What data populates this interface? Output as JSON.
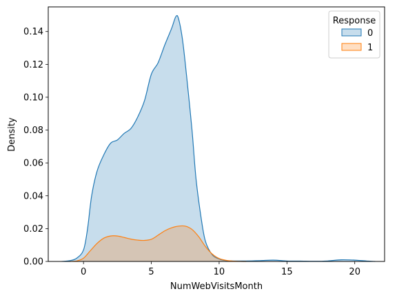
{
  "chart_data": {
    "type": "area",
    "xlabel": "NumWebVisitsMonth",
    "ylabel": "Density",
    "xlim": [
      -2.6,
      22.2
    ],
    "ylim": [
      0,
      0.155
    ],
    "xticks": [
      0,
      5,
      10,
      15,
      20
    ],
    "yticks": [
      0.0,
      0.02,
      0.04,
      0.06,
      0.08,
      0.1,
      0.12,
      0.14
    ],
    "xtick_labels": [
      "0",
      "5",
      "10",
      "15",
      "20"
    ],
    "ytick_labels": [
      "0.00",
      "0.02",
      "0.04",
      "0.06",
      "0.08",
      "0.10",
      "0.12",
      "0.14"
    ],
    "grid": false,
    "legend": {
      "title": "Response",
      "placement": "top-right"
    },
    "series": [
      {
        "name": "0",
        "color": "#1f77b4",
        "fill_color": "#c6dbee",
        "x": [
          -1.6,
          -1.0,
          -0.5,
          0.0,
          0.3,
          0.6,
          1.0,
          1.5,
          2.0,
          2.5,
          3.0,
          3.5,
          4.0,
          4.5,
          5.0,
          5.5,
          6.0,
          6.5,
          6.8,
          7.0,
          7.3,
          7.6,
          8.0,
          8.3,
          8.7,
          9.0,
          9.5,
          10.0,
          10.5,
          11.0,
          12.0,
          13.0,
          14.0,
          15.0,
          16.0,
          17.0,
          18.0,
          19.0,
          20.0,
          21.0,
          21.5
        ],
        "y": [
          0.0,
          0.0005,
          0.002,
          0.007,
          0.02,
          0.04,
          0.055,
          0.065,
          0.072,
          0.074,
          0.078,
          0.081,
          0.088,
          0.098,
          0.114,
          0.121,
          0.132,
          0.142,
          0.149,
          0.148,
          0.135,
          0.113,
          0.08,
          0.05,
          0.025,
          0.012,
          0.004,
          0.0015,
          0.0005,
          0.0003,
          0.0003,
          0.0005,
          0.0008,
          0.0003,
          0.0002,
          0.0001,
          0.0003,
          0.001,
          0.0008,
          0.0002,
          0.0
        ]
      },
      {
        "name": "1",
        "color": "#ff7f0e",
        "fill_color": "#ffd5b0",
        "x": [
          -1.0,
          -0.5,
          0.0,
          0.5,
          1.0,
          1.5,
          2.0,
          2.5,
          3.0,
          3.5,
          4.0,
          4.5,
          5.0,
          5.5,
          6.0,
          6.5,
          7.0,
          7.5,
          8.0,
          8.5,
          9.0,
          9.5,
          10.0,
          10.5,
          11.0,
          11.5,
          12.0
        ],
        "y": [
          0.0,
          0.0003,
          0.002,
          0.0065,
          0.011,
          0.0142,
          0.0155,
          0.0155,
          0.0146,
          0.0136,
          0.013,
          0.0128,
          0.0135,
          0.016,
          0.0187,
          0.0205,
          0.0215,
          0.0215,
          0.0195,
          0.015,
          0.009,
          0.0045,
          0.0018,
          0.0007,
          0.0002,
          5e-05,
          0.0
        ]
      }
    ]
  }
}
